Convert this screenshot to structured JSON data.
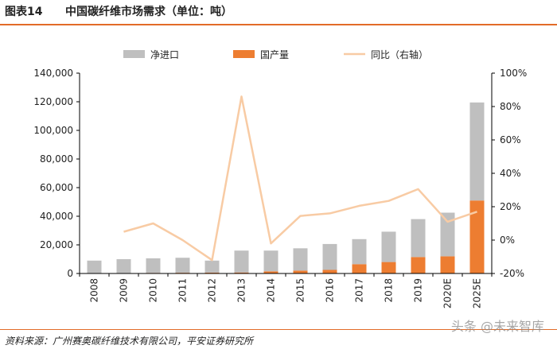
{
  "header": {
    "figure_label": "图表14",
    "title": "中国碳纤维市场需求（单位：吨）"
  },
  "footer": {
    "source": "资料来源：广州赛奥碳纤维技术有限公司，平安证券研究所",
    "watermark": "头条 @未来智库"
  },
  "colors": {
    "net_import": "#bfbfbf",
    "domestic": "#ed7d31",
    "yoy": "#f8cba4",
    "accent": "#e26b28"
  },
  "chart_data": {
    "type": "bar",
    "stacked": true,
    "categories": [
      "2008",
      "2009",
      "2010",
      "2011",
      "2012",
      "2013",
      "2014",
      "2015",
      "2016",
      "2017",
      "2018",
      "2019",
      "2020E",
      "2025E"
    ],
    "series": [
      {
        "name": "国产量",
        "type": "bar",
        "axis": "left",
        "color": "#ed7d31",
        "values": [
          200,
          300,
          400,
          500,
          600,
          700,
          1500,
          2000,
          2500,
          6500,
          8000,
          11500,
          12000,
          51000
        ]
      },
      {
        "name": "净进口",
        "type": "bar",
        "axis": "left",
        "color": "#bfbfbf",
        "values": [
          8800,
          9700,
          10200,
          10500,
          8400,
          15300,
          14500,
          15600,
          18100,
          17500,
          21200,
          26500,
          30500,
          68500
        ]
      },
      {
        "name": "同比（右轴）",
        "type": "line",
        "axis": "right",
        "color": "#f8cba4",
        "values": [
          null,
          5,
          10,
          0,
          -12,
          86,
          -2,
          14.5,
          16,
          20.5,
          23.5,
          30.5,
          11,
          17
        ]
      }
    ],
    "legend_order": [
      "净进口",
      "国产量",
      "同比（右轴）"
    ],
    "legend_position": "top",
    "y_left": {
      "min": 0,
      "max": 140000,
      "ticks": [
        "0",
        "20,000",
        "40,000",
        "60,000",
        "80,000",
        "100,000",
        "120,000",
        "140,000"
      ]
    },
    "y_right": {
      "min": -20,
      "max": 100,
      "ticks": [
        "-20%",
        "0%",
        "20%",
        "40%",
        "60%",
        "80%",
        "100%"
      ]
    },
    "grid": false
  }
}
